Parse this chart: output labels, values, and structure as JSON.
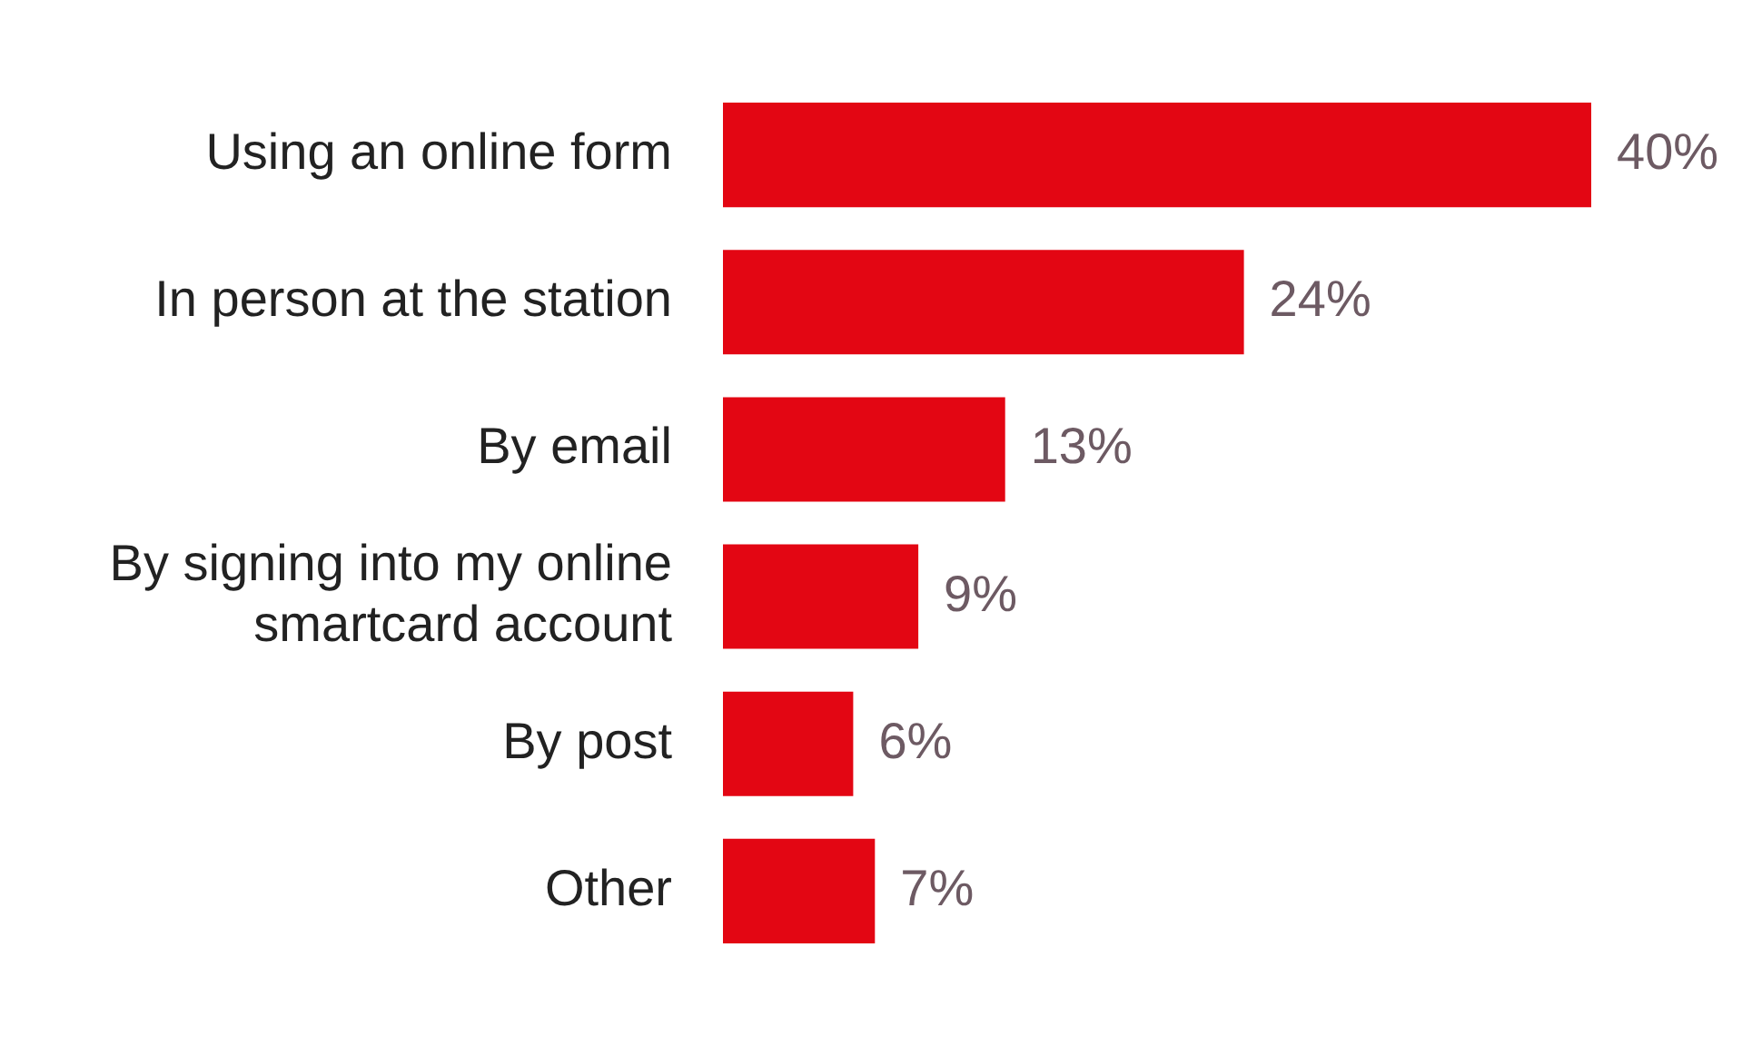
{
  "chart_data": {
    "type": "bar",
    "orientation": "horizontal",
    "categories": [
      "Using an online form",
      "In person at the station",
      "By email",
      "By signing into my online smartcard account",
      "By post",
      "Other"
    ],
    "values": [
      40,
      24,
      13,
      9,
      6,
      7
    ],
    "value_labels": [
      "40%",
      "24%",
      "13%",
      "9%",
      "6%",
      "7%"
    ],
    "color": "#e30613",
    "xlim": [
      0,
      40
    ],
    "tick_labels": "y"
  }
}
